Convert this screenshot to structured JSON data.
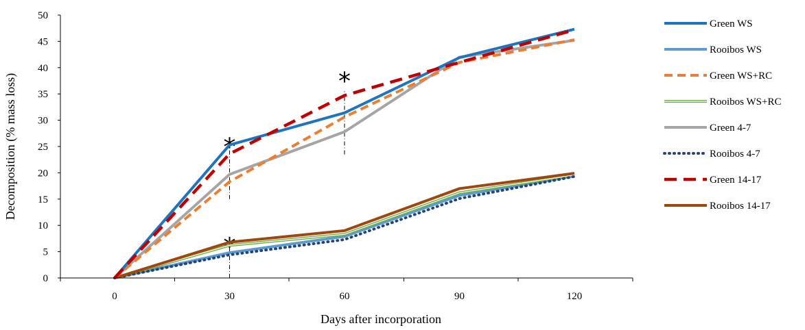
{
  "chart_data": {
    "type": "line",
    "xlabel": "Days after incorporation",
    "ylabel": "Decomposition (% mass loss)",
    "x": [
      0,
      30,
      60,
      90,
      120
    ],
    "x_tick_labels": [
      "0",
      "30",
      "60",
      "90",
      "120"
    ],
    "ylim": [
      0,
      50
    ],
    "y_ticks": [
      0,
      5,
      10,
      15,
      20,
      25,
      30,
      35,
      40,
      45,
      50
    ],
    "y_tick_labels": [
      "0",
      "5",
      "10",
      "15",
      "20",
      "25",
      "30",
      "35",
      "40",
      "45",
      "50"
    ],
    "grid": false,
    "legend_position": "right",
    "series": [
      {
        "name": "Green WS",
        "values": [
          0,
          25.3,
          31.4,
          41.9,
          47.3
        ],
        "color": "#1f74c0",
        "style": "solid"
      },
      {
        "name": "Rooibos WS",
        "values": [
          0,
          4.8,
          7.9,
          15.7,
          19.4
        ],
        "color": "#5b9bd5",
        "style": "solid"
      },
      {
        "name": "Green WS+RC",
        "values": [
          0,
          18.3,
          30.6,
          41.0,
          45.3
        ],
        "color": "#ed7d31",
        "style": "dashed"
      },
      {
        "name": "Rooibos WS+RC",
        "values": [
          0,
          6.2,
          8.3,
          16.2,
          19.6
        ],
        "color": "#70ad47",
        "style": "double"
      },
      {
        "name": "Green 4-7",
        "values": [
          0,
          19.7,
          27.8,
          42.0,
          45.2
        ],
        "color": "#a5a5a5",
        "style": "solid"
      },
      {
        "name": "Rooibos 4-7",
        "values": [
          0,
          4.4,
          7.3,
          15.1,
          19.3
        ],
        "color": "#264478",
        "style": "dotted"
      },
      {
        "name": "Green 14-17",
        "values": [
          0,
          23.6,
          34.7,
          41.0,
          47.2
        ],
        "color": "#c00000",
        "style": "longdash"
      },
      {
        "name": "Rooibos 14-17",
        "values": [
          0,
          6.8,
          9.0,
          17.0,
          19.9
        ],
        "color": "#9e480e",
        "style": "solid"
      }
    ],
    "annotations": [
      {
        "text": "*",
        "x": 30,
        "y_star": 26.0,
        "line_from": 15.0,
        "line_to": 25.6
      },
      {
        "text": "*",
        "x": 60,
        "y_star": 38.5,
        "line_from": 23.5,
        "line_to": 35.5
      },
      {
        "text": "*",
        "x": 30,
        "y_star": 7.0,
        "line_from": 0,
        "line_to": 6.8
      }
    ]
  }
}
